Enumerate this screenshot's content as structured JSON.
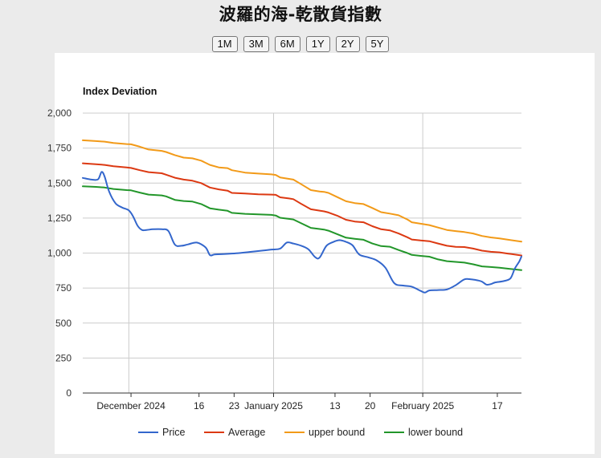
{
  "page": {
    "title": "波羅的海-乾散貨指數"
  },
  "range_buttons": [
    "1M",
    "3M",
    "6M",
    "1Y",
    "2Y",
    "5Y"
  ],
  "colors": {
    "price": "#3366cc",
    "average": "#dc3912",
    "upper": "#f29a18",
    "lower": "#22962a"
  },
  "chart_data": {
    "type": "line",
    "title": "Index Deviation",
    "xlabel": "",
    "ylabel": "",
    "ylim": [
      0,
      2000
    ],
    "yticks": [
      0,
      250,
      500,
      750,
      1000,
      1250,
      1500,
      1750,
      2000
    ],
    "yticklabels": [
      "0",
      "250",
      "500",
      "750",
      "1,000",
      "1,250",
      "1,500",
      "1,750",
      "2,000"
    ],
    "xlim": [
      0,
      100
    ],
    "xticks": [
      {
        "x": 11,
        "label": "December 2024"
      },
      {
        "x": 26.5,
        "label": "16"
      },
      {
        "x": 34.5,
        "label": "23"
      },
      {
        "x": 43.5,
        "label": "January 2025"
      },
      {
        "x": 57.5,
        "label": "13"
      },
      {
        "x": 65.5,
        "label": "20"
      },
      {
        "x": 77.5,
        "label": "February 2025"
      },
      {
        "x": 94.5,
        "label": "17"
      }
    ],
    "major_gridlines_x": [
      10.5,
      43.5,
      77.5
    ],
    "legend_position": "bottom",
    "series": [
      {
        "name": "Price",
        "color": "#3366cc",
        "smooth": true,
        "points": [
          [
            0,
            1537
          ],
          [
            2,
            1525
          ],
          [
            3.5,
            1527
          ],
          [
            4.3,
            1580
          ],
          [
            5,
            1545
          ],
          [
            6,
            1440
          ],
          [
            7.5,
            1355
          ],
          [
            9,
            1325
          ],
          [
            10.5,
            1305
          ],
          [
            11.5,
            1260
          ],
          [
            12.5,
            1195
          ],
          [
            13.5,
            1165
          ],
          [
            14.5,
            1165
          ],
          [
            16,
            1170
          ],
          [
            18,
            1170
          ],
          [
            19.5,
            1158
          ],
          [
            21,
            1060
          ],
          [
            22.5,
            1052
          ],
          [
            24,
            1062
          ],
          [
            26,
            1075
          ],
          [
            28,
            1040
          ],
          [
            29,
            985
          ],
          [
            30,
            990
          ],
          [
            32,
            993
          ],
          [
            35,
            998
          ],
          [
            38,
            1008
          ],
          [
            41,
            1018
          ],
          [
            43,
            1025
          ],
          [
            45,
            1032
          ],
          [
            46.5,
            1075
          ],
          [
            48,
            1068
          ],
          [
            50,
            1050
          ],
          [
            51.5,
            1025
          ],
          [
            53,
            970
          ],
          [
            54,
            968
          ],
          [
            55.5,
            1050
          ],
          [
            57,
            1078
          ],
          [
            58.5,
            1092
          ],
          [
            60,
            1080
          ],
          [
            61.5,
            1055
          ],
          [
            63,
            990
          ],
          [
            65,
            970
          ],
          [
            67,
            948
          ],
          [
            69,
            895
          ],
          [
            71,
            785
          ],
          [
            73,
            768
          ],
          [
            75,
            760
          ],
          [
            77,
            730
          ],
          [
            78,
            718
          ],
          [
            79,
            733
          ],
          [
            81,
            736
          ],
          [
            83,
            740
          ],
          [
            85,
            770
          ],
          [
            87,
            812
          ],
          [
            88.5,
            812
          ],
          [
            90,
            805
          ],
          [
            91,
            796
          ],
          [
            92,
            775
          ],
          [
            93,
            778
          ],
          [
            94,
            790
          ],
          [
            96,
            800
          ],
          [
            97.5,
            820
          ],
          [
            98.5,
            890
          ],
          [
            99.5,
            940
          ],
          [
            100,
            975
          ]
        ]
      },
      {
        "name": "Average",
        "color": "#dc3912",
        "smooth": false,
        "points": [
          [
            0,
            1641
          ],
          [
            3,
            1635
          ],
          [
            5,
            1630
          ],
          [
            7,
            1620
          ],
          [
            10,
            1612
          ],
          [
            11,
            1608
          ],
          [
            13,
            1592
          ],
          [
            15,
            1578
          ],
          [
            18,
            1570
          ],
          [
            19,
            1560
          ],
          [
            21,
            1538
          ],
          [
            23,
            1525
          ],
          [
            25,
            1517
          ],
          [
            27,
            1500
          ],
          [
            29,
            1468
          ],
          [
            31,
            1455
          ],
          [
            33,
            1446
          ],
          [
            34,
            1430
          ],
          [
            37,
            1425
          ],
          [
            40,
            1420
          ],
          [
            43,
            1418
          ],
          [
            44,
            1416
          ],
          [
            45,
            1398
          ],
          [
            47,
            1390
          ],
          [
            48,
            1385
          ],
          [
            50,
            1348
          ],
          [
            52,
            1313
          ],
          [
            54,
            1303
          ],
          [
            55,
            1298
          ],
          [
            56,
            1290
          ],
          [
            58,
            1267
          ],
          [
            60,
            1238
          ],
          [
            62,
            1225
          ],
          [
            64,
            1220
          ],
          [
            66,
            1192
          ],
          [
            68,
            1170
          ],
          [
            70,
            1162
          ],
          [
            72,
            1140
          ],
          [
            74,
            1113
          ],
          [
            75,
            1097
          ],
          [
            77,
            1090
          ],
          [
            79,
            1085
          ],
          [
            81,
            1068
          ],
          [
            83,
            1052
          ],
          [
            85,
            1044
          ],
          [
            87,
            1043
          ],
          [
            89,
            1032
          ],
          [
            91,
            1017
          ],
          [
            93,
            1009
          ],
          [
            95,
            1005
          ],
          [
            97,
            996
          ],
          [
            100,
            983
          ]
        ]
      },
      {
        "name": "upper bound",
        "color": "#f29a18",
        "smooth": false,
        "points": [
          [
            0,
            1806
          ],
          [
            3,
            1800
          ],
          [
            5,
            1796
          ],
          [
            7,
            1786
          ],
          [
            10,
            1779
          ],
          [
            11,
            1777
          ],
          [
            13,
            1760
          ],
          [
            15,
            1740
          ],
          [
            18,
            1730
          ],
          [
            19,
            1722
          ],
          [
            21,
            1700
          ],
          [
            23,
            1682
          ],
          [
            25,
            1677
          ],
          [
            27,
            1660
          ],
          [
            29,
            1630
          ],
          [
            31,
            1612
          ],
          [
            33,
            1607
          ],
          [
            34,
            1592
          ],
          [
            37,
            1575
          ],
          [
            40,
            1568
          ],
          [
            43,
            1562
          ],
          [
            44,
            1558
          ],
          [
            45,
            1540
          ],
          [
            47,
            1530
          ],
          [
            48,
            1525
          ],
          [
            50,
            1488
          ],
          [
            52,
            1450
          ],
          [
            54,
            1440
          ],
          [
            55,
            1437
          ],
          [
            56,
            1430
          ],
          [
            58,
            1400
          ],
          [
            60,
            1370
          ],
          [
            62,
            1357
          ],
          [
            64,
            1350
          ],
          [
            66,
            1322
          ],
          [
            68,
            1292
          ],
          [
            70,
            1282
          ],
          [
            72,
            1270
          ],
          [
            74,
            1240
          ],
          [
            75,
            1220
          ],
          [
            77,
            1210
          ],
          [
            79,
            1200
          ],
          [
            81,
            1182
          ],
          [
            83,
            1165
          ],
          [
            85,
            1157
          ],
          [
            87,
            1150
          ],
          [
            89,
            1140
          ],
          [
            91,
            1122
          ],
          [
            93,
            1112
          ],
          [
            95,
            1105
          ],
          [
            97,
            1095
          ],
          [
            100,
            1082
          ]
        ]
      },
      {
        "name": "lower bound",
        "color": "#22962a",
        "smooth": false,
        "points": [
          [
            0,
            1477
          ],
          [
            3,
            1473
          ],
          [
            5,
            1468
          ],
          [
            7,
            1458
          ],
          [
            10,
            1450
          ],
          [
            11,
            1448
          ],
          [
            13,
            1432
          ],
          [
            15,
            1418
          ],
          [
            18,
            1412
          ],
          [
            19,
            1405
          ],
          [
            21,
            1380
          ],
          [
            23,
            1372
          ],
          [
            25,
            1368
          ],
          [
            27,
            1350
          ],
          [
            29,
            1320
          ],
          [
            31,
            1310
          ],
          [
            33,
            1302
          ],
          [
            34,
            1287
          ],
          [
            37,
            1280
          ],
          [
            40,
            1277
          ],
          [
            43,
            1273
          ],
          [
            44,
            1268
          ],
          [
            45,
            1252
          ],
          [
            47,
            1244
          ],
          [
            48,
            1240
          ],
          [
            50,
            1210
          ],
          [
            52,
            1180
          ],
          [
            54,
            1172
          ],
          [
            55,
            1168
          ],
          [
            56,
            1160
          ],
          [
            58,
            1135
          ],
          [
            60,
            1110
          ],
          [
            62,
            1102
          ],
          [
            64,
            1095
          ],
          [
            66,
            1068
          ],
          [
            68,
            1050
          ],
          [
            70,
            1045
          ],
          [
            72,
            1022
          ],
          [
            74,
            1000
          ],
          [
            75,
            987
          ],
          [
            77,
            980
          ],
          [
            79,
            974
          ],
          [
            81,
            955
          ],
          [
            83,
            942
          ],
          [
            85,
            937
          ],
          [
            87,
            932
          ],
          [
            89,
            920
          ],
          [
            91,
            905
          ],
          [
            93,
            900
          ],
          [
            95,
            895
          ],
          [
            97,
            888
          ],
          [
            100,
            878
          ]
        ]
      }
    ]
  }
}
